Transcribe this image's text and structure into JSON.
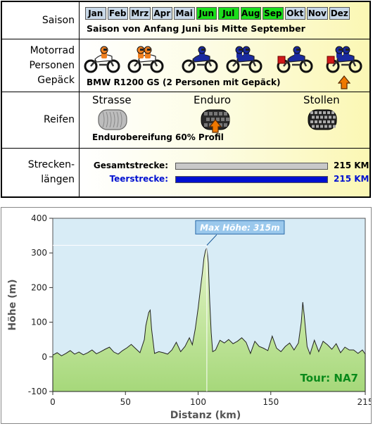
{
  "rows": {
    "saison": {
      "label": "Saison"
    },
    "motorrad": {
      "label_lines": [
        "Motorrad",
        "Personen",
        "Gepäck"
      ]
    },
    "reifen": {
      "label": "Reifen"
    },
    "strecken": {
      "label_lines": [
        "Strecken-",
        "längen"
      ]
    }
  },
  "months": [
    {
      "label": "Jan",
      "active": false
    },
    {
      "label": "Feb",
      "active": false
    },
    {
      "label": "Mrz",
      "active": false
    },
    {
      "label": "Apr",
      "active": false
    },
    {
      "label": "Mai",
      "active": false
    },
    {
      "label": "Jun",
      "active": true
    },
    {
      "label": "Jul",
      "active": true
    },
    {
      "label": "Aug",
      "active": true
    },
    {
      "label": "Sep",
      "active": true
    },
    {
      "label": "Okt",
      "active": false
    },
    {
      "label": "Nov",
      "active": false
    },
    {
      "label": "Dez",
      "active": false
    }
  ],
  "season_text": "Saison von Anfang Juni bis Mitte September",
  "motorcycles": [
    {
      "name": "enduro-1-person-icon",
      "bike": "#ffffff",
      "riders": [
        "#f08020"
      ],
      "luggage": false
    },
    {
      "name": "enduro-2-persons-icon",
      "bike": "#ffffff",
      "riders": [
        "#f08020",
        "#f08020"
      ],
      "luggage": false
    },
    {
      "name": "tourer-1-person-icon",
      "bike": "#1a2aa0",
      "riders": [
        "#1a2aa0"
      ],
      "luggage": false
    },
    {
      "name": "tourer-2-persons-icon",
      "bike": "#1a2aa0",
      "riders": [
        "#1a2aa0",
        "#1a2aa0"
      ],
      "luggage": false
    },
    {
      "name": "tourer-1-person-luggage-icon",
      "bike": "#1a2aa0",
      "riders": [
        "#1a2aa0"
      ],
      "luggage": true
    },
    {
      "name": "tourer-2-persons-luggage-icon",
      "bike": "#1a2aa0",
      "riders": [
        "#1a2aa0",
        "#1a2aa0"
      ],
      "luggage": true
    }
  ],
  "motorcycle_selected_index": 5,
  "motorcycle_text": "BMW R1200 GS  (2 Personen mit Gepäck)",
  "tires": [
    {
      "label": "Strasse",
      "icon": "road-tire-icon",
      "tread": "road"
    },
    {
      "label": "Enduro",
      "icon": "enduro-tire-icon",
      "tread": "enduro"
    },
    {
      "label": "Stollen",
      "icon": "knobby-tire-icon",
      "tread": "knobby"
    }
  ],
  "tire_selected_index": 1,
  "tire_text": "Endurobereifung 60% Profil",
  "lengths": [
    {
      "label": "Gesamtstrecke:",
      "value": "215 KM",
      "fraction": 1.0,
      "bar_color": "#c8c8c8",
      "label_color": "#000000"
    },
    {
      "label": "Teerstrecke:",
      "value": "215 KM",
      "fraction": 1.0,
      "bar_color": "#0010d0",
      "label_color": "#0010d0"
    }
  ],
  "colors": {
    "accent_orange": "#f07800",
    "season_green": "#1adf1a",
    "chart_fill": "#a6d87a",
    "chart_bg": "#d8ecf6"
  },
  "chart_data": {
    "type": "area",
    "title": "",
    "xlabel": "Distanz  (km)",
    "ylabel": "Höhe  (m)",
    "xlim": [
      0,
      215
    ],
    "ylim": [
      -100,
      400
    ],
    "xticks": [
      0,
      50,
      100,
      150,
      215
    ],
    "yticks": [
      -100,
      0,
      100,
      200,
      300,
      400
    ],
    "annotation": "Max Höhe: 315m",
    "annotation_x": 106,
    "annotation_y": 322,
    "tour_label": "Tour: NA7",
    "series": [
      {
        "x": [
          0,
          3,
          6,
          9,
          12,
          15,
          18,
          21,
          24,
          27,
          30,
          33,
          36,
          39,
          42,
          45,
          48,
          51,
          54,
          57,
          60,
          63,
          64,
          66,
          67,
          68,
          70,
          73,
          76,
          79,
          82,
          85,
          88,
          91,
          94,
          96,
          98,
          100,
          102,
          103,
          104,
          105,
          106,
          107,
          108,
          109,
          110,
          112,
          115,
          118,
          121,
          124,
          127,
          130,
          133,
          136,
          139,
          142,
          145,
          148,
          151,
          154,
          157,
          160,
          163,
          166,
          169,
          171,
          172,
          173,
          175,
          177,
          180,
          183,
          186,
          189,
          192,
          195,
          198,
          201,
          204,
          207,
          210,
          213,
          215
        ],
        "y": [
          5,
          12,
          3,
          10,
          18,
          8,
          14,
          6,
          12,
          20,
          9,
          15,
          22,
          28,
          14,
          8,
          18,
          26,
          36,
          24,
          12,
          50,
          90,
          128,
          135,
          80,
          10,
          15,
          12,
          8,
          20,
          42,
          15,
          30,
          55,
          35,
          80,
          140,
          210,
          245,
          285,
          305,
          315,
          270,
          160,
          70,
          15,
          20,
          48,
          40,
          50,
          38,
          45,
          55,
          42,
          10,
          45,
          30,
          25,
          18,
          60,
          25,
          15,
          30,
          40,
          20,
          40,
          100,
          158,
          120,
          30,
          8,
          48,
          15,
          45,
          35,
          22,
          38,
          12,
          28,
          20,
          20,
          10,
          20,
          8
        ]
      }
    ]
  }
}
